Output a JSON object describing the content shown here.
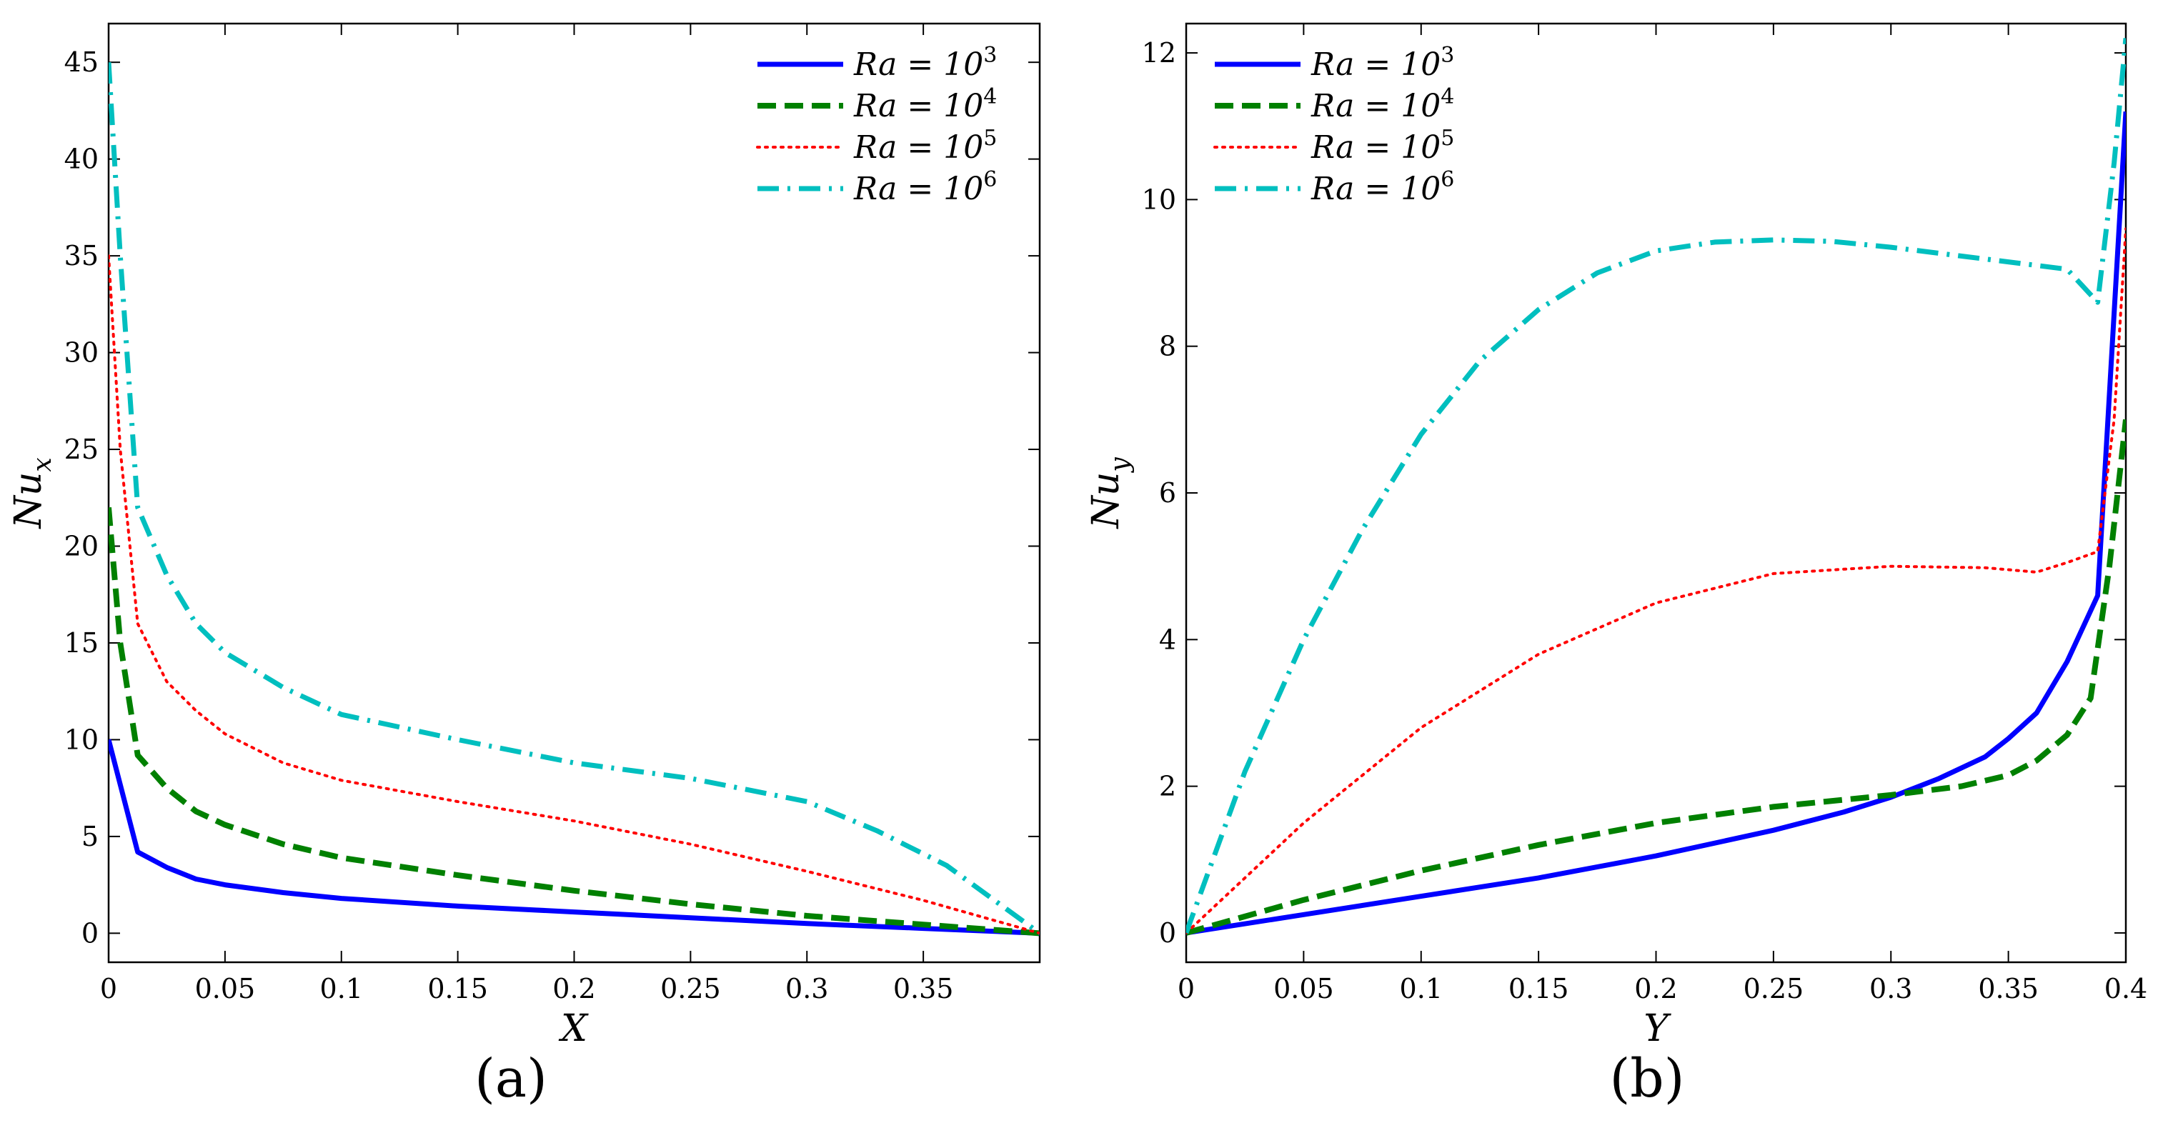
{
  "chart_data": [
    {
      "type": "line",
      "panel_label": "(a)",
      "xlabel": "X",
      "ylabel": "Nu",
      "ylabel_sub": "x",
      "xlim": [
        0,
        0.4
      ],
      "ylim": [
        -1.5,
        47
      ],
      "xticks": [
        0,
        0.05,
        0.1,
        0.15,
        0.2,
        0.25,
        0.3,
        0.35
      ],
      "xtick_labels": [
        "0",
        "0.05",
        "0.1",
        "0.15",
        "0.2",
        "0.25",
        "0.3",
        "0.35"
      ],
      "yticks": [
        0,
        5,
        10,
        15,
        20,
        25,
        30,
        35,
        40,
        45
      ],
      "ytick_labels": [
        "0",
        "5",
        "10",
        "15",
        "20",
        "25",
        "30",
        "35",
        "40",
        "45"
      ],
      "legend_position": "top-right",
      "series": [
        {
          "name": "Ra = 10^3",
          "legend_base": "Ra = 10",
          "legend_exp": "3",
          "color": "#0000ff",
          "dash": "solid",
          "x": [
            0,
            0.0125,
            0.025,
            0.0375,
            0.05,
            0.075,
            0.1,
            0.15,
            0.2,
            0.25,
            0.3,
            0.35,
            0.4
          ],
          "y": [
            10,
            4.2,
            3.4,
            2.8,
            2.5,
            2.1,
            1.8,
            1.4,
            1.1,
            0.8,
            0.5,
            0.25,
            0
          ]
        },
        {
          "name": "Ra = 10^4",
          "legend_base": "Ra = 10",
          "legend_exp": "4",
          "color": "#008000",
          "dash": "dashed",
          "x": [
            0,
            0.005,
            0.0125,
            0.025,
            0.0375,
            0.05,
            0.075,
            0.1,
            0.15,
            0.2,
            0.25,
            0.3,
            0.35,
            0.4
          ],
          "y": [
            22,
            15,
            9.2,
            7.5,
            6.3,
            5.6,
            4.6,
            3.9,
            3.0,
            2.2,
            1.5,
            0.9,
            0.45,
            0
          ]
        },
        {
          "name": "Ra = 10^5",
          "legend_base": "Ra = 10",
          "legend_exp": "5",
          "color": "#ff0000",
          "dash": "dotted",
          "x": [
            0,
            0.005,
            0.0125,
            0.025,
            0.0375,
            0.05,
            0.075,
            0.1,
            0.15,
            0.2,
            0.25,
            0.3,
            0.35,
            0.4
          ],
          "y": [
            35,
            25,
            16,
            13,
            11.5,
            10.3,
            8.8,
            7.9,
            6.8,
            5.8,
            4.6,
            3.2,
            1.7,
            0
          ]
        },
        {
          "name": "Ra = 10^6",
          "legend_base": "Ra = 10",
          "legend_exp": "6",
          "color": "#00bfbf",
          "dash": "dashdot",
          "x": [
            0,
            0.005,
            0.0125,
            0.025,
            0.0375,
            0.05,
            0.075,
            0.1,
            0.15,
            0.2,
            0.25,
            0.3,
            0.33,
            0.36,
            0.4
          ],
          "y": [
            45,
            35,
            22,
            18.5,
            16,
            14.5,
            12.7,
            11.3,
            10,
            8.8,
            8,
            6.8,
            5.3,
            3.5,
            0
          ]
        }
      ]
    },
    {
      "type": "line",
      "panel_label": "(b)",
      "xlabel": "Y",
      "ylabel": "Nu",
      "ylabel_sub": "y",
      "xlim": [
        0,
        0.4
      ],
      "ylim": [
        -0.4,
        12.4
      ],
      "xticks": [
        0,
        0.05,
        0.1,
        0.15,
        0.2,
        0.25,
        0.3,
        0.35,
        0.4
      ],
      "xtick_labels": [
        "0",
        "0.05",
        "0.1",
        "0.15",
        "0.2",
        "0.25",
        "0.3",
        "0.35",
        "0.4"
      ],
      "yticks": [
        0,
        2,
        4,
        6,
        8,
        10,
        12
      ],
      "ytick_labels": [
        "0",
        "2",
        "4",
        "6",
        "8",
        "10",
        "12"
      ],
      "legend_position": "top-left",
      "series": [
        {
          "name": "Ra = 10^3",
          "legend_base": "Ra = 10",
          "legend_exp": "3",
          "color": "#0000ff",
          "dash": "solid",
          "x": [
            0,
            0.05,
            0.1,
            0.15,
            0.2,
            0.25,
            0.28,
            0.3,
            0.32,
            0.34,
            0.35,
            0.362,
            0.375,
            0.388,
            0.4
          ],
          "y": [
            0,
            0.25,
            0.5,
            0.75,
            1.05,
            1.4,
            1.65,
            1.85,
            2.1,
            2.4,
            2.65,
            3.0,
            3.7,
            4.6,
            11.2
          ]
        },
        {
          "name": "Ra = 10^4",
          "legend_base": "Ra = 10",
          "legend_exp": "4",
          "color": "#008000",
          "dash": "dashed",
          "x": [
            0,
            0.05,
            0.1,
            0.15,
            0.2,
            0.25,
            0.3,
            0.33,
            0.35,
            0.362,
            0.375,
            0.385,
            0.393,
            0.4
          ],
          "y": [
            0,
            0.45,
            0.85,
            1.2,
            1.5,
            1.72,
            1.88,
            2.0,
            2.15,
            2.35,
            2.7,
            3.2,
            5.0,
            7.0
          ]
        },
        {
          "name": "Ra = 10^5",
          "legend_base": "Ra = 10",
          "legend_exp": "5",
          "color": "#ff0000",
          "dash": "dotted",
          "x": [
            0,
            0.05,
            0.1,
            0.15,
            0.2,
            0.25,
            0.3,
            0.34,
            0.362,
            0.375,
            0.388,
            0.395,
            0.4
          ],
          "y": [
            0,
            1.5,
            2.8,
            3.8,
            4.5,
            4.9,
            5.0,
            4.98,
            4.92,
            5.05,
            5.2,
            7.0,
            9.6
          ]
        },
        {
          "name": "Ra = 10^6",
          "legend_base": "Ra = 10",
          "legend_exp": "6",
          "color": "#00bfbf",
          "dash": "dashdot",
          "x": [
            0,
            0.025,
            0.05,
            0.075,
            0.1,
            0.125,
            0.15,
            0.175,
            0.2,
            0.225,
            0.25,
            0.275,
            0.3,
            0.325,
            0.35,
            0.375,
            0.388,
            0.395,
            0.4
          ],
          "y": [
            0,
            2.2,
            4.0,
            5.5,
            6.8,
            7.8,
            8.5,
            9.0,
            9.3,
            9.42,
            9.45,
            9.43,
            9.35,
            9.25,
            9.15,
            9.05,
            8.6,
            10.5,
            12.2
          ]
        }
      ]
    }
  ]
}
